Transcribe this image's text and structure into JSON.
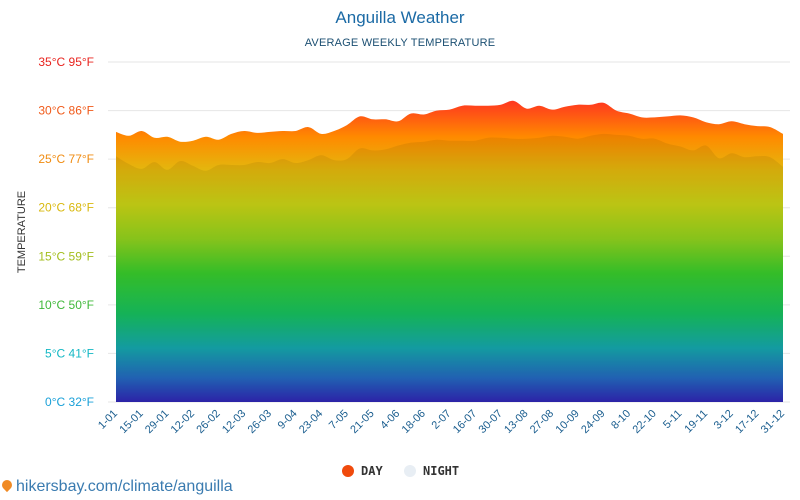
{
  "chart_data": {
    "type": "area",
    "title": "Anguilla Weather",
    "subtitle": "AVERAGE WEEKLY TEMPERATURE",
    "ylabel": "TEMPERATURE",
    "ylim": [
      0,
      35
    ],
    "yticks": [
      {
        "value": 0,
        "label": "0°C 32°F",
        "color": "#1aa0d8"
      },
      {
        "value": 5,
        "label": "5°C 41°F",
        "color": "#14b8c4"
      },
      {
        "value": 10,
        "label": "10°C 50°F",
        "color": "#3fb83a"
      },
      {
        "value": 15,
        "label": "15°C 59°F",
        "color": "#a3be1e"
      },
      {
        "value": 20,
        "label": "20°C 68°F",
        "color": "#d9b90f"
      },
      {
        "value": 25,
        "label": "25°C 77°F",
        "color": "#f08c12"
      },
      {
        "value": 30,
        "label": "30°C 86°F",
        "color": "#f05a1a"
      },
      {
        "value": 35,
        "label": "35°C 95°F",
        "color": "#e8231e"
      }
    ],
    "xticks": [
      "1-01",
      "15-01",
      "29-01",
      "12-02",
      "26-02",
      "12-03",
      "26-03",
      "9-04",
      "23-04",
      "7-05",
      "21-05",
      "4-06",
      "18-06",
      "2-07",
      "16-07",
      "30-07",
      "13-08",
      "27-08",
      "10-09",
      "24-09",
      "8-10",
      "22-10",
      "5-11",
      "19-11",
      "3-12",
      "17-12",
      "31-12"
    ],
    "series": [
      {
        "name": "DAY",
        "color": "#f04a0c",
        "values": [
          27.8,
          27.4,
          27.9,
          27.2,
          27.3,
          26.8,
          26.9,
          27.3,
          27.0,
          27.6,
          27.9,
          27.7,
          27.8,
          27.9,
          27.9,
          28.3,
          27.6,
          27.9,
          28.5,
          29.4,
          29.1,
          29.1,
          28.9,
          29.7,
          29.6,
          30.0,
          30.1,
          30.5,
          30.5,
          30.5,
          30.6,
          31.0,
          30.2,
          30.5,
          30.1,
          30.4,
          30.6,
          30.6,
          30.8,
          30.0,
          29.7,
          29.3,
          29.3,
          29.4,
          29.5,
          29.3,
          28.8,
          28.6,
          28.9,
          28.6,
          28.4,
          28.3,
          27.6
        ]
      },
      {
        "name": "NIGHT",
        "color": "#e8eef4",
        "values": [
          25.3,
          24.5,
          24.0,
          24.7,
          23.9,
          24.8,
          24.3,
          23.8,
          24.4,
          24.4,
          24.4,
          24.7,
          24.6,
          25.0,
          24.6,
          24.9,
          25.4,
          24.9,
          25.0,
          26.1,
          25.9,
          26.0,
          26.4,
          26.7,
          26.8,
          27.0,
          26.9,
          26.9,
          26.9,
          27.2,
          27.2,
          27.1,
          27.1,
          27.2,
          27.4,
          27.3,
          27.1,
          27.4,
          27.6,
          27.5,
          27.4,
          27.1,
          27.1,
          26.6,
          26.3,
          25.9,
          26.4,
          25.1,
          25.6,
          25.2,
          25.3,
          25.2,
          24.2
        ]
      }
    ],
    "grid": true,
    "legend": "bottom-center"
  },
  "footer": {
    "text": "hikersbay.com/climate/anguilla"
  }
}
